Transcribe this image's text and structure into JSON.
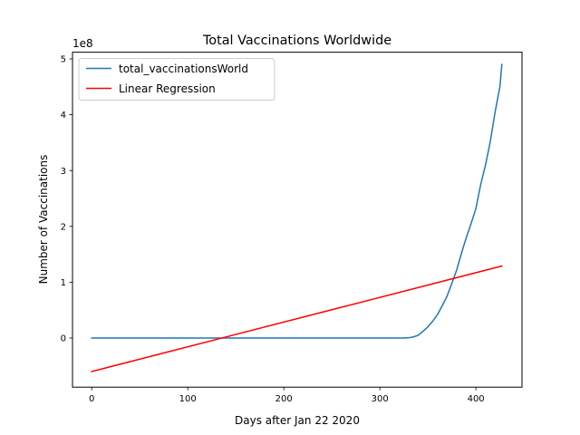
{
  "chart_data": {
    "type": "line",
    "title": "Total Vaccinations Worldwide",
    "xlabel": "Days after Jan 22 2020",
    "ylabel": "Number of Vaccinations",
    "y_offset_label": "1e8",
    "xlim": [
      -20,
      448
    ],
    "ylim": [
      -0.88,
      5.12
    ],
    "x_ticks": [
      0,
      100,
      200,
      300,
      400
    ],
    "x_tick_labels": [
      "0",
      "100",
      "200",
      "300",
      "400"
    ],
    "y_ticks": [
      0,
      1,
      2,
      3,
      4,
      5
    ],
    "y_tick_labels": [
      "0",
      "1",
      "2",
      "3",
      "4",
      "5"
    ],
    "grid": false,
    "legend_position": "top-left",
    "series": [
      {
        "name": "total_vaccinationsWorld",
        "color": "#1f77b4",
        "points": [
          [
            0,
            0
          ],
          [
            100,
            0
          ],
          [
            200,
            0
          ],
          [
            300,
            0
          ],
          [
            325,
            0
          ],
          [
            330,
            0.005
          ],
          [
            335,
            0.02
          ],
          [
            340,
            0.05
          ],
          [
            345,
            0.12
          ],
          [
            350,
            0.2
          ],
          [
            355,
            0.3
          ],
          [
            360,
            0.42
          ],
          [
            365,
            0.58
          ],
          [
            370,
            0.75
          ],
          [
            375,
            0.98
          ],
          [
            380,
            1.22
          ],
          [
            385,
            1.52
          ],
          [
            390,
            1.8
          ],
          [
            395,
            2.05
          ],
          [
            400,
            2.32
          ],
          [
            405,
            2.75
          ],
          [
            410,
            3.1
          ],
          [
            415,
            3.52
          ],
          [
            420,
            4.05
          ],
          [
            425,
            4.5
          ],
          [
            427,
            4.9
          ]
        ]
      },
      {
        "name": "Linear Regression",
        "color": "#ff0000",
        "points": [
          [
            0,
            -0.6
          ],
          [
            427,
            1.29
          ]
        ]
      }
    ]
  }
}
